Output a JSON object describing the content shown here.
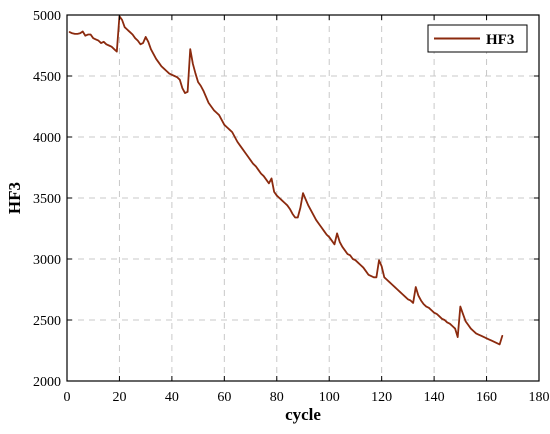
{
  "chart_data": {
    "type": "line",
    "title": "",
    "xlabel": "cycle",
    "ylabel": "HF3",
    "xlim": [
      0,
      180
    ],
    "ylim": [
      2000,
      5000
    ],
    "xticks": [
      0,
      20,
      40,
      60,
      80,
      100,
      120,
      140,
      160,
      180
    ],
    "yticks": [
      2000,
      2500,
      3000,
      3500,
      4000,
      4500,
      5000
    ],
    "grid": true,
    "legend_position": "top-right",
    "series": [
      {
        "name": "HF3",
        "color": "#8b2a0e",
        "x": [
          1,
          2,
          3,
          4,
          5,
          6,
          7,
          8,
          9,
          10,
          11,
          12,
          13,
          14,
          15,
          16,
          17,
          18,
          19,
          20,
          21,
          22,
          23,
          24,
          25,
          26,
          27,
          28,
          29,
          30,
          31,
          32,
          33,
          34,
          35,
          36,
          37,
          38,
          39,
          40,
          41,
          42,
          43,
          44,
          45,
          46,
          47,
          48,
          49,
          50,
          51,
          52,
          53,
          54,
          55,
          56,
          57,
          58,
          59,
          60,
          61,
          62,
          63,
          64,
          65,
          66,
          67,
          68,
          69,
          70,
          71,
          72,
          73,
          74,
          75,
          76,
          77,
          78,
          79,
          80,
          81,
          82,
          83,
          84,
          85,
          86,
          87,
          88,
          89,
          90,
          91,
          92,
          93,
          94,
          95,
          96,
          97,
          98,
          99,
          100,
          101,
          102,
          103,
          104,
          105,
          106,
          107,
          108,
          109,
          110,
          111,
          112,
          113,
          114,
          115,
          116,
          117,
          118,
          119,
          120,
          121,
          122,
          123,
          124,
          125,
          126,
          127,
          128,
          129,
          130,
          131,
          132,
          133,
          134,
          135,
          136,
          137,
          138,
          139,
          140,
          141,
          142,
          143,
          144,
          145,
          146,
          147,
          148,
          149,
          150,
          151,
          152,
          153,
          154,
          155,
          156,
          157,
          158,
          159,
          160,
          161,
          162,
          163,
          164,
          165,
          166
        ],
        "y": [
          4860,
          4850,
          4845,
          4845,
          4850,
          4865,
          4830,
          4840,
          4840,
          4810,
          4800,
          4790,
          4770,
          4780,
          4760,
          4750,
          4740,
          4720,
          4700,
          4990,
          4960,
          4900,
          4880,
          4860,
          4840,
          4810,
          4790,
          4760,
          4770,
          4820,
          4780,
          4720,
          4680,
          4640,
          4610,
          4580,
          4560,
          4540,
          4520,
          4510,
          4500,
          4490,
          4470,
          4400,
          4360,
          4370,
          4720,
          4600,
          4520,
          4450,
          4420,
          4380,
          4330,
          4280,
          4250,
          4220,
          4200,
          4180,
          4140,
          4100,
          4080,
          4060,
          4040,
          4000,
          3960,
          3930,
          3900,
          3870,
          3840,
          3810,
          3780,
          3760,
          3730,
          3700,
          3680,
          3650,
          3620,
          3660,
          3550,
          3520,
          3500,
          3480,
          3460,
          3440,
          3410,
          3370,
          3340,
          3340,
          3420,
          3540,
          3490,
          3440,
          3400,
          3360,
          3320,
          3290,
          3260,
          3230,
          3200,
          3180,
          3150,
          3120,
          3210,
          3140,
          3100,
          3070,
          3040,
          3030,
          3000,
          2990,
          2970,
          2950,
          2930,
          2900,
          2870,
          2860,
          2850,
          2850,
          2990,
          2940,
          2850,
          2830,
          2810,
          2790,
          2770,
          2750,
          2730,
          2710,
          2690,
          2670,
          2660,
          2640,
          2770,
          2700,
          2660,
          2630,
          2610,
          2600,
          2580,
          2560,
          2550,
          2530,
          2510,
          2500,
          2480,
          2470,
          2450,
          2430,
          2360,
          2610,
          2550,
          2490,
          2460,
          2430,
          2410,
          2390,
          2380,
          2370,
          2360,
          2350,
          2340,
          2330,
          2320,
          2310,
          2300,
          2370
        ]
      }
    ]
  }
}
